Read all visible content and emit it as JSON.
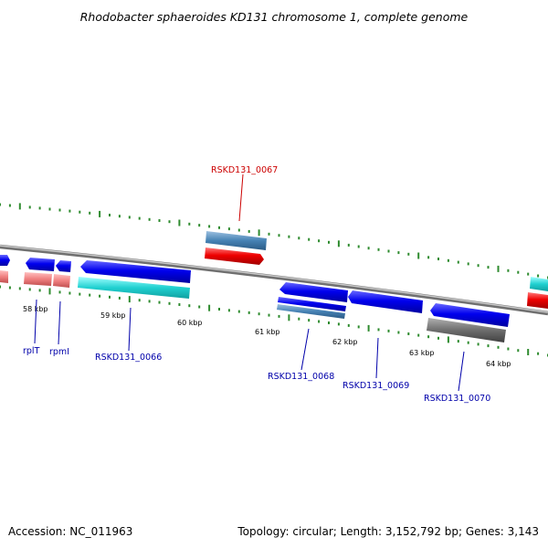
{
  "title": "Rhodobacter sphaeroides KD131 chromosome 1, complete genome",
  "footer": {
    "accession": "Accession: NC_011963",
    "summary": "Topology: circular; Length: 3,152,792 bp; Genes: 3,143"
  },
  "scale": {
    "unit": "kbp",
    "labels": [
      "58 kbp",
      "59 kbp",
      "60 kbp",
      "61 kbp",
      "62 kbp",
      "63 kbp",
      "64 kbp"
    ]
  },
  "colors": {
    "backbone": "#8c8c8c",
    "tick": "#2e8b2e",
    "gene_blue": "#0000ee",
    "gene_red": "#ee0000",
    "gene_pink": "#f08080",
    "gene_cyan": "#20d0d0",
    "gene_steel": "#4682b4",
    "gene_gray": "#6e6e6e",
    "label_blue": "#0000aa",
    "label_red": "#cc0000"
  },
  "gene_labels": [
    {
      "name": "rplT",
      "color": "label_blue"
    },
    {
      "name": "rpmI",
      "color": "label_blue"
    },
    {
      "name": "RSKD131_0066",
      "color": "label_blue"
    },
    {
      "name": "RSKD131_0067",
      "color": "label_red"
    },
    {
      "name": "RSKD131_0068",
      "color": "label_blue"
    },
    {
      "name": "RSKD131_0069",
      "color": "label_blue"
    },
    {
      "name": "RSKD131_0070",
      "color": "label_blue"
    }
  ]
}
